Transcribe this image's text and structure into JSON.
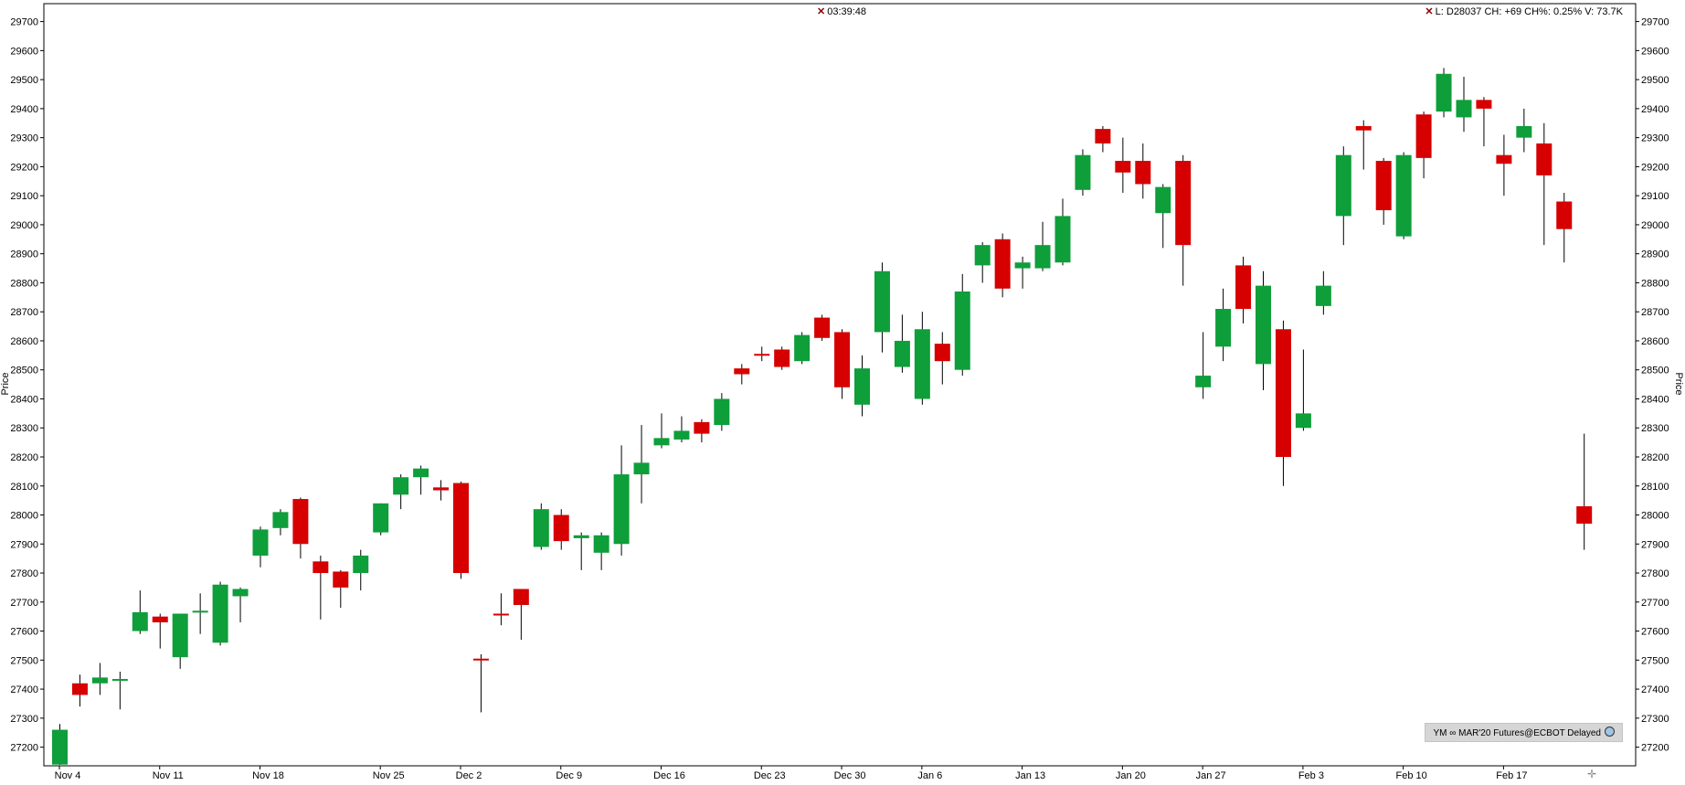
{
  "header": {
    "timer_icon": "x-mark",
    "timer": "03:39:48",
    "quote_icon": "x-mark",
    "quote_line": "L: D28037 CH: +69 CH%: 0.25% V: 73.7K"
  },
  "footer": {
    "symbol_label": "YM ∞ MAR'20 Futures@ECBOT Delayed",
    "symbol_icon": "globe-icon",
    "corner_icon": "crosshair-icon",
    "corner_glyph": "✛"
  },
  "chart_data": {
    "type": "candlestick",
    "ylabel": "Price",
    "ylim": [
      27150,
      29730
    ],
    "yticks": [
      27200,
      27300,
      27400,
      27500,
      27600,
      27700,
      27800,
      27900,
      28000,
      28100,
      28200,
      28300,
      28400,
      28500,
      28600,
      28700,
      28800,
      28900,
      29000,
      29100,
      29200,
      29300,
      29400,
      29500,
      29600,
      29700
    ],
    "grid": false,
    "colors": {
      "up": "#0e9e3a",
      "down": "#d60000",
      "wick": "#000000",
      "axis": "#000000"
    },
    "x_labels": [
      {
        "label": "Nov 4",
        "index": 0
      },
      {
        "label": "Nov 11",
        "index": 5
      },
      {
        "label": "Nov 18",
        "index": 10
      },
      {
        "label": "Nov 25",
        "index": 16
      },
      {
        "label": "Dec 2",
        "index": 20
      },
      {
        "label": "Dec 9",
        "index": 25
      },
      {
        "label": "Dec 16",
        "index": 30
      },
      {
        "label": "Dec 23",
        "index": 35
      },
      {
        "label": "Dec 30",
        "index": 39
      },
      {
        "label": "Jan 6",
        "index": 43
      },
      {
        "label": "Jan 13",
        "index": 48
      },
      {
        "label": "Jan 20",
        "index": 53
      },
      {
        "label": "Jan 27",
        "index": 57
      },
      {
        "label": "Feb 3",
        "index": 62
      },
      {
        "label": "Feb 10",
        "index": 67
      },
      {
        "label": "Feb 17",
        "index": 72
      }
    ],
    "candles": [
      {
        "o": 27140,
        "h": 27280,
        "l": 27120,
        "c": 27260
      },
      {
        "o": 27420,
        "h": 27450,
        "l": 27340,
        "c": 27380
      },
      {
        "o": 27420,
        "h": 27490,
        "l": 27380,
        "c": 27440
      },
      {
        "o": 27430,
        "h": 27460,
        "l": 27330,
        "c": 27435
      },
      {
        "o": 27600,
        "h": 27740,
        "l": 27590,
        "c": 27665
      },
      {
        "o": 27650,
        "h": 27660,
        "l": 27540,
        "c": 27630
      },
      {
        "o": 27510,
        "h": 27660,
        "l": 27470,
        "c": 27660
      },
      {
        "o": 27665,
        "h": 27730,
        "l": 27590,
        "c": 27670
      },
      {
        "o": 27560,
        "h": 27770,
        "l": 27550,
        "c": 27760
      },
      {
        "o": 27720,
        "h": 27750,
        "l": 27630,
        "c": 27745
      },
      {
        "o": 27860,
        "h": 27960,
        "l": 27820,
        "c": 27950
      },
      {
        "o": 27955,
        "h": 28020,
        "l": 27930,
        "c": 28010
      },
      {
        "o": 28055,
        "h": 28060,
        "l": 27850,
        "c": 27900
      },
      {
        "o": 27840,
        "h": 27860,
        "l": 27640,
        "c": 27800
      },
      {
        "o": 27805,
        "h": 27810,
        "l": 27680,
        "c": 27750
      },
      {
        "o": 27800,
        "h": 27880,
        "l": 27740,
        "c": 27860
      },
      {
        "o": 27940,
        "h": 28040,
        "l": 27930,
        "c": 28040
      },
      {
        "o": 28070,
        "h": 28140,
        "l": 28020,
        "c": 28130
      },
      {
        "o": 28130,
        "h": 28170,
        "l": 28070,
        "c": 28160
      },
      {
        "o": 28095,
        "h": 28120,
        "l": 28050,
        "c": 28085
      },
      {
        "o": 28110,
        "h": 28115,
        "l": 27780,
        "c": 27800
      },
      {
        "o": 27505,
        "h": 27520,
        "l": 27320,
        "c": 27500
      },
      {
        "o": 27660,
        "h": 27730,
        "l": 27620,
        "c": 27655
      },
      {
        "o": 27745,
        "h": 27745,
        "l": 27570,
        "c": 27690
      },
      {
        "o": 27890,
        "h": 28040,
        "l": 27880,
        "c": 28020
      },
      {
        "o": 28000,
        "h": 28020,
        "l": 27880,
        "c": 27910
      },
      {
        "o": 27920,
        "h": 27940,
        "l": 27810,
        "c": 27930
      },
      {
        "o": 27870,
        "h": 27940,
        "l": 27810,
        "c": 27930
      },
      {
        "o": 27900,
        "h": 28240,
        "l": 27860,
        "c": 28140
      },
      {
        "o": 28140,
        "h": 28310,
        "l": 28040,
        "c": 28180
      },
      {
        "o": 28240,
        "h": 28350,
        "l": 28230,
        "c": 28265
      },
      {
        "o": 28260,
        "h": 28340,
        "l": 28250,
        "c": 28290
      },
      {
        "o": 28320,
        "h": 28330,
        "l": 28250,
        "c": 28280
      },
      {
        "o": 28310,
        "h": 28420,
        "l": 28290,
        "c": 28400
      },
      {
        "o": 28505,
        "h": 28520,
        "l": 28450,
        "c": 28485
      },
      {
        "o": 28555,
        "h": 28580,
        "l": 28530,
        "c": 28550
      },
      {
        "o": 28570,
        "h": 28580,
        "l": 28500,
        "c": 28510
      },
      {
        "o": 28530,
        "h": 28630,
        "l": 28520,
        "c": 28620
      },
      {
        "o": 28680,
        "h": 28690,
        "l": 28600,
        "c": 28610
      },
      {
        "o": 28630,
        "h": 28640,
        "l": 28400,
        "c": 28440
      },
      {
        "o": 28380,
        "h": 28550,
        "l": 28340,
        "c": 28505
      },
      {
        "o": 28630,
        "h": 28870,
        "l": 28560,
        "c": 28840
      },
      {
        "o": 28510,
        "h": 28690,
        "l": 28490,
        "c": 28600
      },
      {
        "o": 28400,
        "h": 28700,
        "l": 28380,
        "c": 28640
      },
      {
        "o": 28590,
        "h": 28630,
        "l": 28450,
        "c": 28530
      },
      {
        "o": 28500,
        "h": 28830,
        "l": 28480,
        "c": 28770
      },
      {
        "o": 28860,
        "h": 28940,
        "l": 28800,
        "c": 28930
      },
      {
        "o": 28950,
        "h": 28970,
        "l": 28750,
        "c": 28780
      },
      {
        "o": 28850,
        "h": 28890,
        "l": 28780,
        "c": 28870
      },
      {
        "o": 28850,
        "h": 29010,
        "l": 28840,
        "c": 28930
      },
      {
        "o": 28870,
        "h": 29090,
        "l": 28860,
        "c": 29030
      },
      {
        "o": 29120,
        "h": 29260,
        "l": 29100,
        "c": 29240
      },
      {
        "o": 29330,
        "h": 29340,
        "l": 29250,
        "c": 29280
      },
      {
        "o": 29220,
        "h": 29300,
        "l": 29110,
        "c": 29180
      },
      {
        "o": 29220,
        "h": 29280,
        "l": 29090,
        "c": 29140
      },
      {
        "o": 29040,
        "h": 29140,
        "l": 28920,
        "c": 29130
      },
      {
        "o": 29220,
        "h": 29240,
        "l": 28790,
        "c": 28930
      },
      {
        "o": 28440,
        "h": 28630,
        "l": 28400,
        "c": 28480
      },
      {
        "o": 28580,
        "h": 28780,
        "l": 28530,
        "c": 28710
      },
      {
        "o": 28860,
        "h": 28890,
        "l": 28660,
        "c": 28710
      },
      {
        "o": 28520,
        "h": 28840,
        "l": 28430,
        "c": 28790
      },
      {
        "o": 28640,
        "h": 28670,
        "l": 28100,
        "c": 28200
      },
      {
        "o": 28300,
        "h": 28570,
        "l": 28290,
        "c": 28350
      },
      {
        "o": 28720,
        "h": 28840,
        "l": 28690,
        "c": 28790
      },
      {
        "o": 29030,
        "h": 29270,
        "l": 28930,
        "c": 29240
      },
      {
        "o": 29340,
        "h": 29360,
        "l": 29190,
        "c": 29325
      },
      {
        "o": 29220,
        "h": 29230,
        "l": 29000,
        "c": 29050
      },
      {
        "o": 28960,
        "h": 29250,
        "l": 28950,
        "c": 29240
      },
      {
        "o": 29380,
        "h": 29390,
        "l": 29160,
        "c": 29230
      },
      {
        "o": 29390,
        "h": 29540,
        "l": 29370,
        "c": 29520
      },
      {
        "o": 29370,
        "h": 29510,
        "l": 29320,
        "c": 29430
      },
      {
        "o": 29430,
        "h": 29440,
        "l": 29270,
        "c": 29400
      },
      {
        "o": 29240,
        "h": 29310,
        "l": 29100,
        "c": 29210
      },
      {
        "o": 29300,
        "h": 29400,
        "l": 29250,
        "c": 29340
      },
      {
        "o": 29280,
        "h": 29350,
        "l": 28930,
        "c": 29170
      },
      {
        "o": 29080,
        "h": 29110,
        "l": 28870,
        "c": 28985
      },
      {
        "o": 28030,
        "h": 28280,
        "l": 27880,
        "c": 27970
      }
    ]
  }
}
